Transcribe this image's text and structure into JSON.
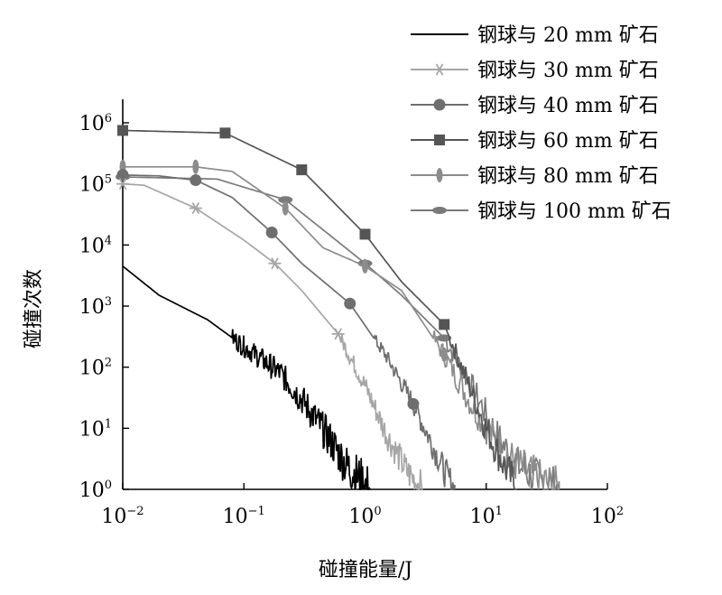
{
  "chart_data": {
    "type": "line",
    "title": "",
    "xlabel": "碰撞能量/J",
    "ylabel": "碰撞次数",
    "x_scale": "log",
    "y_scale": "log",
    "xlim": [
      0.01,
      100
    ],
    "ylim": [
      1,
      1000000
    ],
    "grid": false,
    "legend_position": "top-right",
    "x_ticks": [
      {
        "base": "10",
        "exp": "−2",
        "value": 0.01
      },
      {
        "base": "10",
        "exp": "−1",
        "value": 0.1
      },
      {
        "base": "10",
        "exp": "0",
        "value": 1
      },
      {
        "base": "10",
        "exp": "1",
        "value": 10
      },
      {
        "base": "10",
        "exp": "2",
        "value": 100
      }
    ],
    "y_ticks": [
      {
        "base": "10",
        "exp": "0",
        "value": 1
      },
      {
        "base": "10",
        "exp": "1",
        "value": 10
      },
      {
        "base": "10",
        "exp": "2",
        "value": 100
      },
      {
        "base": "10",
        "exp": "3",
        "value": 1000
      },
      {
        "base": "10",
        "exp": "4",
        "value": 10000
      },
      {
        "base": "10",
        "exp": "5",
        "value": 100000
      },
      {
        "base": "10",
        "exp": "6",
        "value": 1000000
      }
    ],
    "series": [
      {
        "name": "钢球与 20 mm 矿石",
        "color": "#000000",
        "marker": "none",
        "noise": 0.16,
        "x": [
          0.01,
          0.02,
          0.05,
          0.1,
          0.2,
          0.3,
          0.5,
          0.7,
          0.9,
          1.1
        ],
        "y": [
          4500,
          1500,
          600,
          220,
          80,
          30,
          7,
          2.5,
          1.5,
          1
        ]
      },
      {
        "name": "钢球与 30 mm 矿石",
        "color": "#a6a6a6",
        "marker": "asterisk",
        "noise": 0.12,
        "x": [
          0.01,
          0.015,
          0.04,
          0.1,
          0.18,
          0.3,
          0.6,
          1.0,
          1.5,
          2.2,
          3.0
        ],
        "y": [
          100000,
          95000,
          40000,
          12000,
          5000,
          1800,
          350,
          50,
          8,
          2,
          1
        ],
        "markers_x": [
          0.01,
          0.04,
          0.18,
          0.6
        ]
      },
      {
        "name": "钢球与 40 mm 矿石",
        "color": "#6e6e6e",
        "marker": "circle",
        "noise": 0.11,
        "x": [
          0.01,
          0.02,
          0.04,
          0.08,
          0.17,
          0.3,
          0.75,
          1.5,
          2.5,
          3.5,
          4.5,
          5.5
        ],
        "y": [
          140000,
          135000,
          115000,
          60000,
          16000,
          5000,
          1100,
          150,
          25,
          6,
          2,
          1
        ],
        "markers_x": [
          0.01,
          0.04,
          0.17,
          0.75,
          2.5
        ]
      },
      {
        "name": "钢球与 60 mm 矿石",
        "color": "#555555",
        "marker": "square",
        "noise": 0.14,
        "x": [
          0.01,
          0.07,
          0.3,
          1.0,
          2.0,
          4.5,
          7.0,
          10,
          14,
          18
        ],
        "y": [
          750000,
          680000,
          170000,
          15000,
          2500,
          500,
          60,
          10,
          2.5,
          1
        ],
        "markers_x": [
          0.01,
          0.07,
          0.3,
          1.0,
          4.5
        ]
      },
      {
        "name": "钢球与 80 mm 矿石",
        "color": "#8c8c8c",
        "marker": "vellipse",
        "noise": 0.15,
        "x": [
          0.01,
          0.04,
          0.08,
          0.22,
          0.45,
          1.0,
          2.0,
          4.5,
          7.5,
          12,
          18,
          28,
          40
        ],
        "y": [
          190000,
          190000,
          160000,
          40000,
          9000,
          4500,
          1800,
          160,
          25,
          6,
          2.5,
          1.4,
          1
        ],
        "markers_x": [
          0.01,
          0.04,
          0.22,
          1.0,
          4.5
        ]
      },
      {
        "name": "钢球与 100 mm 矿石",
        "color": "#7a7a7a",
        "marker": "hellipse",
        "noise": 0.15,
        "x": [
          0.01,
          0.06,
          0.22,
          0.5,
          1.0,
          2.0,
          4.5,
          8,
          12,
          18,
          28,
          40
        ],
        "y": [
          130000,
          120000,
          55000,
          15000,
          5000,
          1500,
          300,
          40,
          8,
          2.5,
          1.3,
          1
        ],
        "markers_x": [
          0.01,
          0.22,
          1.0,
          4.5
        ]
      }
    ]
  }
}
